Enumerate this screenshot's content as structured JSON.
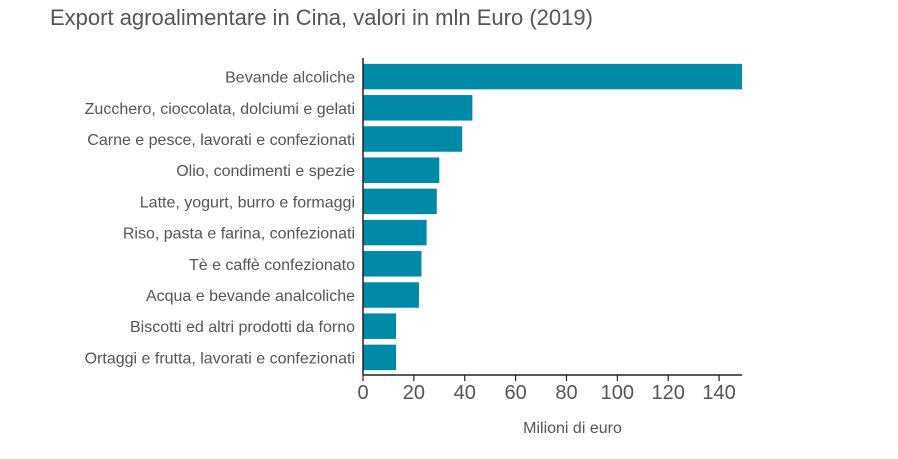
{
  "chart_data": {
    "type": "bar",
    "orientation": "horizontal",
    "title": "Export agroalimentare in Cina, valori in mln Euro (2019)",
    "xlabel": "Milioni di euro",
    "ylabel": "",
    "categories": [
      "Bevande alcoliche",
      "Zucchero, cioccolata, dolciumi e gelati",
      "Carne e pesce, lavorati e confezionati",
      "Olio, condimenti e spezie",
      "Latte, yogurt, burro e formaggi",
      "Riso, pasta e farina, confezionati",
      "Tè e caffè confezionato",
      "Acqua e bevande analcoliche",
      "Biscotti ed altri prodotti da forno",
      "Ortaggi e frutta, lavorati e confezionati"
    ],
    "values": [
      149,
      43,
      39,
      30,
      29,
      25,
      23,
      22,
      13,
      13
    ],
    "xlim": [
      0,
      149
    ],
    "xticks": [
      "0",
      "20",
      "40",
      "60",
      "80",
      "100",
      "120",
      "140"
    ],
    "grid": false,
    "legend": "none",
    "bar_color": "#008aa7",
    "text_color": "#555555"
  }
}
